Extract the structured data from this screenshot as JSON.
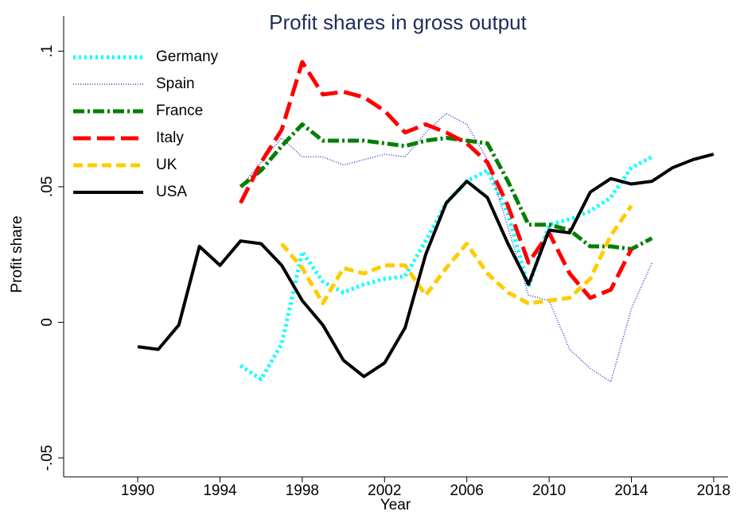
{
  "chart_data": {
    "type": "line",
    "title": "Profit shares in gross output",
    "xlabel": "Year",
    "ylabel": "Profit share",
    "x": [
      1990,
      1991,
      1992,
      1993,
      1994,
      1995,
      1996,
      1997,
      1998,
      1999,
      2000,
      2001,
      2002,
      2003,
      2004,
      2005,
      2006,
      2007,
      2008,
      2009,
      2010,
      2011,
      2012,
      2013,
      2014,
      2015,
      2016,
      2017,
      2018
    ],
    "xlim": [
      1986.4,
      2018.7
    ],
    "xticks": [
      1990,
      1994,
      1998,
      2002,
      2006,
      2010,
      2014,
      2018
    ],
    "ylim": [
      -0.057,
      0.113
    ],
    "yticks": [
      {
        "value": -0.05,
        "label": "-.05"
      },
      0,
      {
        "value": 0.05,
        "label": ".05"
      },
      {
        "value": 0.1,
        "label": ".1"
      }
    ],
    "legend": "top-left",
    "series": [
      {
        "name": "Germany",
        "color": "#00ffff",
        "style": "dotted",
        "values": [
          null,
          null,
          null,
          null,
          null,
          -0.016,
          -0.021,
          -0.008,
          0.026,
          0.015,
          0.011,
          0.014,
          0.016,
          0.017,
          0.03,
          0.044,
          0.052,
          0.056,
          0.04,
          0.013,
          0.036,
          0.038,
          0.041,
          0.046,
          0.057,
          0.061,
          null,
          null,
          null
        ]
      },
      {
        "name": "Spain",
        "color": "#3333cc",
        "style": "fine-dotted",
        "values": [
          null,
          null,
          null,
          null,
          null,
          0.05,
          0.059,
          0.068,
          0.061,
          0.061,
          0.058,
          0.06,
          0.062,
          0.061,
          0.07,
          0.077,
          0.073,
          0.06,
          0.035,
          0.01,
          0.008,
          -0.01,
          -0.017,
          -0.022,
          0.005,
          0.022,
          null,
          null,
          null
        ]
      },
      {
        "name": "France",
        "color": "#007f00",
        "style": "dash-dot",
        "values": [
          null,
          null,
          null,
          null,
          null,
          0.05,
          0.056,
          0.065,
          0.073,
          0.067,
          0.067,
          0.067,
          0.066,
          0.065,
          0.067,
          0.068,
          0.067,
          0.066,
          0.052,
          0.036,
          0.036,
          0.034,
          0.028,
          0.028,
          0.027,
          0.031,
          null,
          null,
          null
        ]
      },
      {
        "name": "Italy",
        "color": "#ff0000",
        "style": "long-dash",
        "values": [
          null,
          null,
          null,
          null,
          null,
          0.044,
          0.059,
          0.071,
          0.096,
          0.084,
          0.085,
          0.083,
          0.078,
          0.07,
          0.073,
          0.07,
          0.066,
          0.059,
          0.043,
          0.022,
          0.033,
          0.018,
          0.009,
          0.012,
          0.027,
          null,
          null,
          null,
          null
        ]
      },
      {
        "name": "UK",
        "color": "#ffcc00",
        "style": "dash",
        "values": [
          null,
          null,
          null,
          null,
          null,
          null,
          null,
          0.029,
          0.02,
          0.007,
          0.02,
          0.018,
          0.021,
          0.021,
          0.01,
          0.02,
          0.029,
          0.018,
          0.011,
          0.007,
          0.008,
          0.009,
          0.016,
          0.032,
          0.043,
          null,
          null,
          null,
          null
        ]
      },
      {
        "name": "USA",
        "color": "#000000",
        "style": "solid",
        "values": [
          -0.009,
          -0.01,
          -0.001,
          0.028,
          0.021,
          0.03,
          0.029,
          0.021,
          0.008,
          -0.001,
          -0.014,
          -0.02,
          -0.015,
          -0.002,
          0.025,
          0.044,
          0.052,
          0.046,
          0.029,
          0.014,
          0.034,
          0.033,
          0.048,
          0.053,
          0.051,
          0.052,
          0.057,
          0.06,
          0.062
        ]
      }
    ]
  }
}
